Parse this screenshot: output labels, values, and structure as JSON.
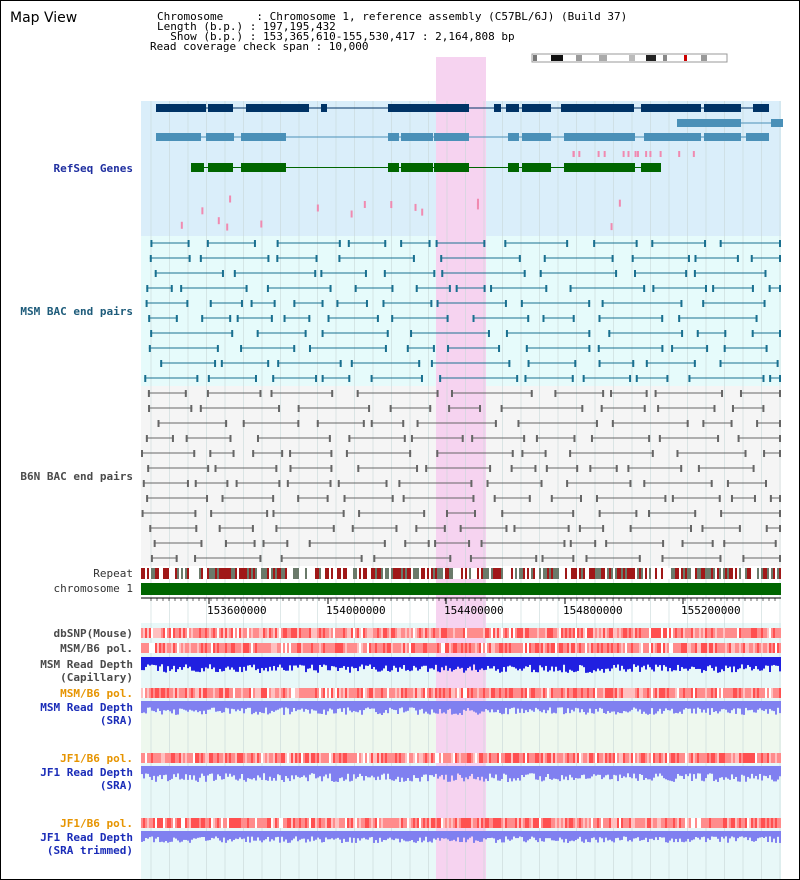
{
  "app": {
    "title": "Map View"
  },
  "info": {
    "chromosome": "Chromosome     : Chromosome 1, reference assembly (C57BL/6J) (Build 37)",
    "length": "Length (b.p.) : 197,195,432",
    "show": "  Show (b.p.) : 153,365,610-155,530,417 : 2,164,808 bp",
    "coverage": "Read coverage check span : 10,000"
  },
  "tracks": {
    "refseq": "RefSeq Genes",
    "msm_bac": "MSM BAC end pairs",
    "b6n_bac": "B6N BAC end pairs",
    "repeat": "Repeat",
    "chromosome": "chromosome 1",
    "dbsnp": "dbSNP(Mouse)",
    "msm_pol1": "MSM/B6 pol.",
    "msm_depth_cap_1": "MSM Read Depth",
    "msm_depth_cap_2": "(Capillary)",
    "msm_pol2": "MSM/B6 pol.",
    "msm_depth_sra_1": "MSM Read Depth",
    "msm_depth_sra_2": "(SRA)",
    "jf1_pol1": "JF1/B6 pol.",
    "jf1_depth_sra_1": "JF1 Read Depth",
    "jf1_depth_sra_2": "(SRA)",
    "jf1_pol2": "JF1/B6 pol.",
    "jf1_depth_trim_1": "JF1 Read Depth",
    "jf1_depth_trim_2": "(SRA trimmed)"
  },
  "ruler": {
    "ticks": [
      "153600000",
      "154000000",
      "154400000",
      "154800000",
      "155200000"
    ]
  },
  "colors": {
    "refseq_bg": "#daeefa",
    "msm_bg": "#e6fbfb",
    "b6n_bg": "#f5f5f5",
    "highlight": "#f6d3f0",
    "gene_navy": "#003366",
    "gene_blue": "#4a90b8",
    "gene_green": "#006600",
    "bac_teal": "#1a7090",
    "bac_gray": "#666666",
    "chromosome_green": "#006600",
    "depth_blue": "#2020e0",
    "depth_lavender": "#8080f0"
  }
}
